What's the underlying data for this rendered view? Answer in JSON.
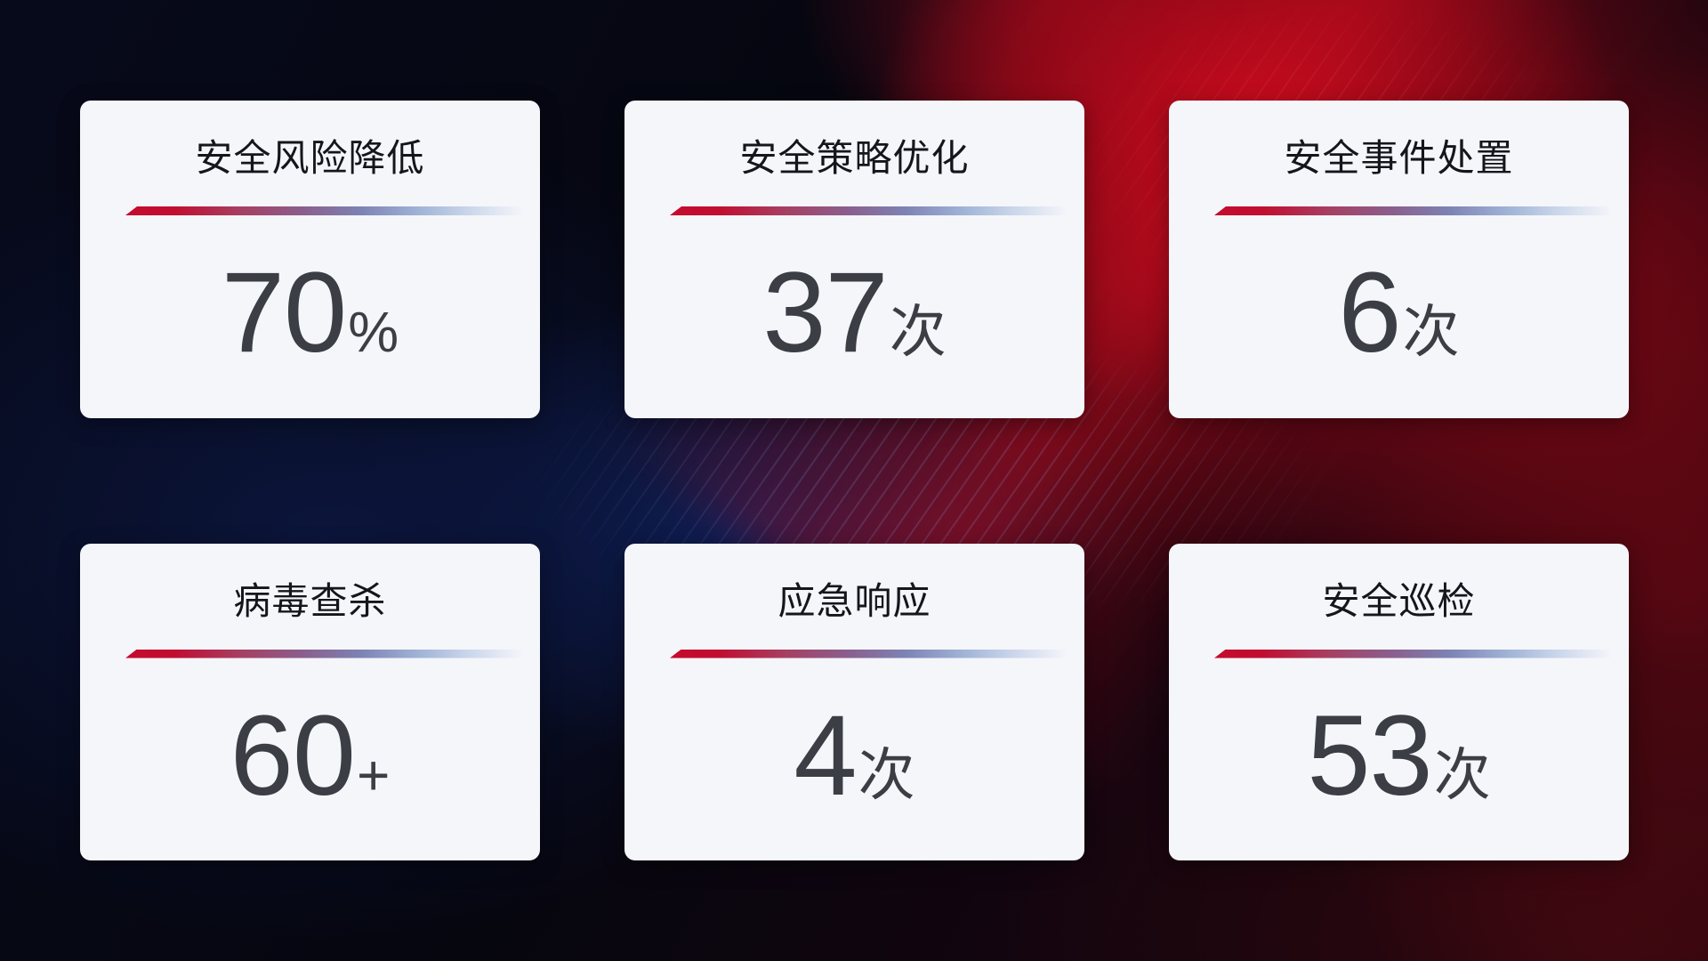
{
  "cards": [
    {
      "title": "安全风险降低",
      "value": "70",
      "unit": "%"
    },
    {
      "title": "安全策略优化",
      "value": "37",
      "unit": "次"
    },
    {
      "title": "安全事件处置",
      "value": "6",
      "unit": "次"
    },
    {
      "title": "病毒查杀",
      "value": "60",
      "unit": "+"
    },
    {
      "title": "应急响应",
      "value": "4",
      "unit": "次"
    },
    {
      "title": "安全巡检",
      "value": "53",
      "unit": "次"
    }
  ],
  "colors": {
    "card_background": "#f5f6fa",
    "title_text": "#14161b",
    "value_text": "#3b3e44",
    "divider_start": "#c40b2e",
    "divider_mid": "#8a5f8e",
    "divider_end": "#c9d5ea",
    "background_bright_red": "#c70a1e",
    "background_dark_maroon": "#36080f",
    "background_navy_glow": "#0c163e",
    "background_bright_blue": "#112870"
  }
}
